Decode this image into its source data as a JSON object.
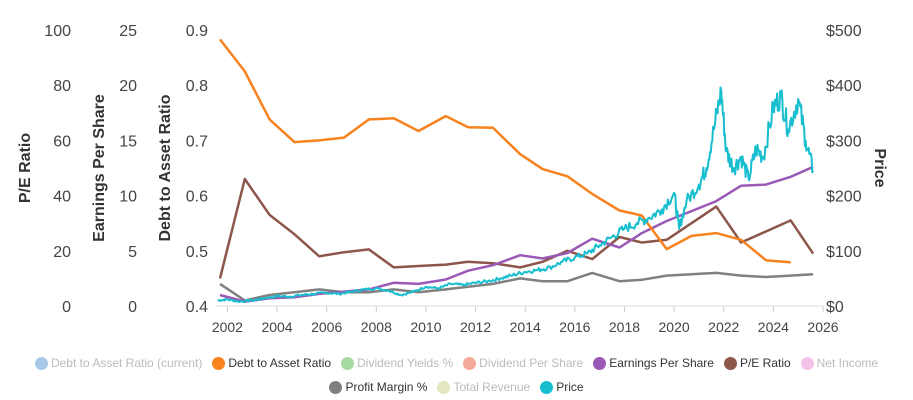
{
  "chart_data": {
    "type": "line",
    "axes": {
      "pe": {
        "title": "P/E Ratio",
        "min": 0,
        "max": 100,
        "ticks": [
          0,
          20,
          40,
          60,
          80,
          100
        ],
        "position": "left-outer"
      },
      "eps": {
        "title": "Earnings Per Share",
        "min": 0,
        "max": 25,
        "ticks": [
          0,
          5,
          10,
          15,
          20,
          25
        ],
        "position": "left-middle"
      },
      "debt": {
        "title": "Debt to Asset Ratio",
        "min": 0.4,
        "max": 0.9,
        "ticks": [
          0.4,
          0.5,
          0.6,
          0.7,
          0.8,
          0.9
        ],
        "position": "left-inner"
      },
      "price": {
        "title": "Price",
        "min": 0,
        "max": 500,
        "ticks": [
          "$0",
          "$100",
          "$200",
          "$300",
          "$400",
          "$500"
        ],
        "position": "right"
      },
      "x": {
        "min": 2001.5,
        "max": 2026,
        "ticks": [
          2002,
          2004,
          2006,
          2008,
          2010,
          2012,
          2014,
          2016,
          2018,
          2020,
          2022,
          2024,
          2026
        ]
      }
    },
    "legend": [
      {
        "name": "Debt to Asset Ratio (current)",
        "color": "#a8c8e8",
        "visible": false
      },
      {
        "name": "Debt to Asset Ratio",
        "color": "#f7821e",
        "visible": true
      },
      {
        "name": "Dividend Yields %",
        "color": "#a6dba0",
        "visible": false
      },
      {
        "name": "Dividend Per Share",
        "color": "#f4a99a",
        "visible": false
      },
      {
        "name": "Earnings Per Share",
        "color": "#9b59b6",
        "visible": true
      },
      {
        "name": "P/E Ratio",
        "color": "#8c564b",
        "visible": true
      },
      {
        "name": "Net Income",
        "color": "#f4c2e8",
        "visible": false
      },
      {
        "name": "Profit Margin %",
        "color": "#808080",
        "visible": true
      },
      {
        "name": "Total Revenue",
        "color": "#e6e6c0",
        "visible": false
      },
      {
        "name": "Price",
        "color": "#17becf",
        "visible": true
      }
    ],
    "series": [
      {
        "name": "Debt to Asset Ratio",
        "axis": "debt",
        "color": "#f7821e",
        "x": [
          2001.7,
          2002.7,
          2003.7,
          2004.7,
          2005.7,
          2006.7,
          2007.7,
          2008.7,
          2009.7,
          2010.8,
          2011.7,
          2012.7,
          2013.8,
          2014.7,
          2015.7,
          2016.7,
          2017.8,
          2018.7,
          2019.7,
          2020.7,
          2021.7,
          2022.7,
          2023.7,
          2024.7
        ],
        "y": [
          0.883,
          0.825,
          0.738,
          0.697,
          0.7,
          0.705,
          0.738,
          0.74,
          0.717,
          0.744,
          0.724,
          0.723,
          0.675,
          0.648,
          0.635,
          0.603,
          0.573,
          0.564,
          0.503,
          0.527,
          0.532,
          0.52,
          0.483,
          0.479
        ]
      },
      {
        "name": "Earnings Per Share",
        "axis": "eps",
        "color": "#9b59b6",
        "x": [
          2001.7,
          2002.7,
          2003.7,
          2004.7,
          2005.7,
          2006.7,
          2007.7,
          2008.7,
          2009.7,
          2010.8,
          2011.7,
          2012.7,
          2013.8,
          2014.7,
          2015.7,
          2016.7,
          2017.8,
          2018.7,
          2019.7,
          2020.7,
          2021.7,
          2022.7,
          2023.7,
          2024.7,
          2025.6
        ],
        "y": [
          1.0,
          0.4,
          0.7,
          0.8,
          1.1,
          1.3,
          1.5,
          2.1,
          2.0,
          2.4,
          3.2,
          3.7,
          4.6,
          4.3,
          4.8,
          6.1,
          5.3,
          6.6,
          7.7,
          8.6,
          9.5,
          10.9,
          11.0,
          11.7,
          12.6
        ]
      },
      {
        "name": "P/E Ratio",
        "axis": "pe",
        "color": "#8c564b",
        "x": [
          2001.7,
          2002.7,
          2003.7,
          2004.7,
          2005.7,
          2006.7,
          2007.7,
          2008.7,
          2009.7,
          2010.8,
          2011.7,
          2012.7,
          2013.8,
          2014.7,
          2015.7,
          2016.7,
          2017.8,
          2018.7,
          2019.7,
          2020.7,
          2021.7,
          2022.7,
          2023.7,
          2024.7,
          2025.6
        ],
        "y": [
          10,
          46,
          33,
          26,
          18,
          19.5,
          20.5,
          14,
          14.5,
          15,
          16,
          15.5,
          14,
          16,
          20,
          17,
          25,
          23,
          24,
          30,
          36,
          23,
          27,
          31,
          19
        ]
      },
      {
        "name": "Profit Margin %",
        "axis": "pe",
        "color": "#808080",
        "x": [
          2001.7,
          2002.7,
          2003.7,
          2004.7,
          2005.7,
          2006.7,
          2007.7,
          2008.7,
          2009.7,
          2010.8,
          2011.7,
          2012.7,
          2013.8,
          2014.7,
          2015.7,
          2016.7,
          2017.8,
          2018.7,
          2019.7,
          2020.7,
          2021.7,
          2022.7,
          2023.7,
          2024.7,
          2025.6
        ],
        "y": [
          8,
          2,
          4,
          5,
          6,
          5,
          5,
          6,
          5,
          6,
          7,
          8,
          10,
          9,
          9,
          12,
          9,
          9.5,
          11,
          11.5,
          12,
          11,
          10.5,
          11,
          11.5
        ]
      },
      {
        "name": "Price",
        "axis": "price",
        "color": "#17becf",
        "x": [
          2001.6,
          2002.0,
          2002.5,
          2003.0,
          2003.5,
          2004.0,
          2004.5,
          2005.0,
          2005.5,
          2006.0,
          2006.5,
          2007.0,
          2007.5,
          2008.0,
          2008.5,
          2009.0,
          2009.5,
          2010.0,
          2010.5,
          2011.0,
          2011.5,
          2012.0,
          2012.5,
          2013.0,
          2013.5,
          2014.0,
          2014.5,
          2015.0,
          2015.5,
          2016.0,
          2016.5,
          2017.0,
          2017.5,
          2018.0,
          2018.5,
          2019.0,
          2019.5,
          2020.0,
          2020.2,
          2020.5,
          2021.0,
          2021.3,
          2021.6,
          2021.9,
          2022.1,
          2022.4,
          2022.7,
          2023.0,
          2023.3,
          2023.6,
          2024.0,
          2024.3,
          2024.6,
          2025.0,
          2025.3,
          2025.6
        ],
        "y": [
          10,
          12,
          8,
          10,
          14,
          18,
          17,
          20,
          22,
          24,
          22,
          26,
          30,
          32,
          28,
          20,
          26,
          35,
          32,
          40,
          38,
          42,
          45,
          50,
          56,
          62,
          65,
          70,
          80,
          88,
          95,
          110,
          125,
          140,
          150,
          160,
          175,
          205,
          140,
          190,
          220,
          250,
          320,
          390,
          280,
          250,
          270,
          230,
          285,
          270,
          360,
          380,
          320,
          375,
          300,
          245
        ]
      }
    ]
  }
}
